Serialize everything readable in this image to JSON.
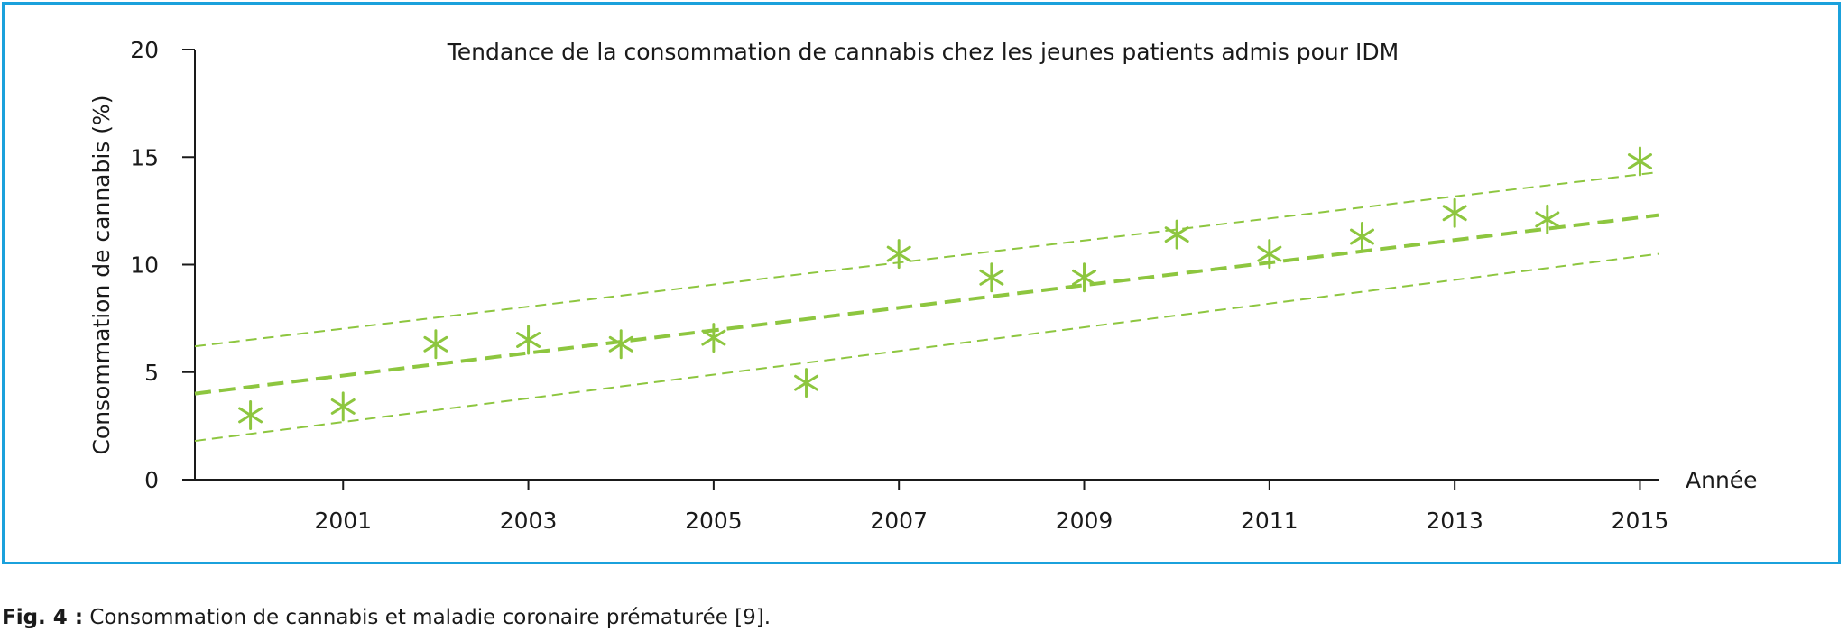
{
  "caption": {
    "label": "Fig. 4 :",
    "text": " Consommation de cannabis et maladie coronaire prématurée [9]."
  },
  "colors": {
    "frame": "#1ba1dc",
    "series": "#8dc63f",
    "axis": "#1a1a1a"
  },
  "chart_data": {
    "type": "scatter",
    "title": "Tendance de la consommation de cannabis chez les jeunes patients admis pour IDM",
    "xlabel": "Année",
    "ylabel": "Consommation de cannabis (%)",
    "xlim": [
      1999.4,
      2015.2
    ],
    "ylim": [
      0,
      20
    ],
    "x_ticks": [
      2001,
      2003,
      2005,
      2007,
      2009,
      2011,
      2013,
      2015
    ],
    "y_ticks": [
      0,
      5,
      10,
      15,
      20
    ],
    "grid": false,
    "legend": "none",
    "marker": "asterisk",
    "series": [
      {
        "x": [
          2000,
          2001,
          2002,
          2003,
          2004,
          2005,
          2006,
          2007,
          2008,
          2009,
          2010,
          2011,
          2012,
          2013,
          2014,
          2015
        ],
        "y": [
          3.0,
          3.4,
          6.3,
          6.5,
          6.3,
          6.6,
          4.5,
          10.5,
          9.4,
          9.4,
          11.4,
          10.5,
          11.3,
          12.4,
          12.1,
          14.8
        ]
      }
    ],
    "trend_lines": [
      {
        "role": "fit",
        "x": [
          1999.4,
          2015.2
        ],
        "y": [
          4.0,
          12.3
        ]
      },
      {
        "role": "upper",
        "x": [
          1999.4,
          2015.2
        ],
        "y": [
          6.2,
          14.3
        ]
      },
      {
        "role": "lower",
        "x": [
          1999.4,
          2015.2
        ],
        "y": [
          1.8,
          10.5
        ]
      }
    ]
  }
}
